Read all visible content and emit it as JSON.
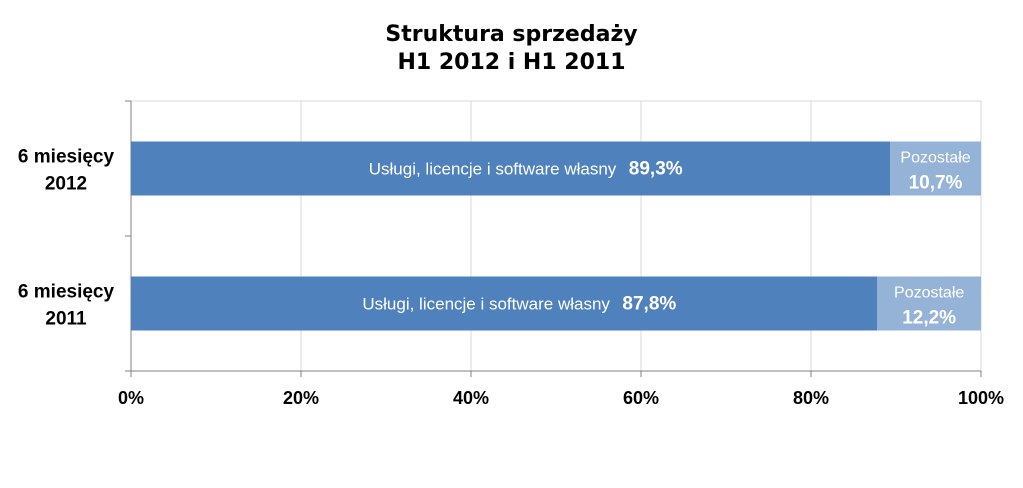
{
  "chart_data": {
    "type": "bar",
    "orientation": "horizontal",
    "stacked": true,
    "title": "Struktura sprzedaży",
    "subtitle": "H1 2012 i H1 2011",
    "categories": [
      [
        "6 miesięcy",
        "2012"
      ],
      [
        "6 miesięcy",
        "2011"
      ]
    ],
    "series": [
      {
        "name": "Usługi, licencje i software własny",
        "values": [
          89.3,
          87.8
        ],
        "labels": [
          "89,3%",
          "87,8%"
        ],
        "color": "#4F81BD"
      },
      {
        "name": "Pozostałe",
        "values": [
          10.7,
          12.2
        ],
        "labels": [
          "10,7%",
          "12,2%"
        ],
        "color": "#95B3D7"
      }
    ],
    "xlim": [
      0,
      100
    ],
    "xticks": [
      "0%",
      "20%",
      "40%",
      "60%",
      "80%",
      "100%"
    ],
    "grid": true,
    "legend": "none"
  }
}
